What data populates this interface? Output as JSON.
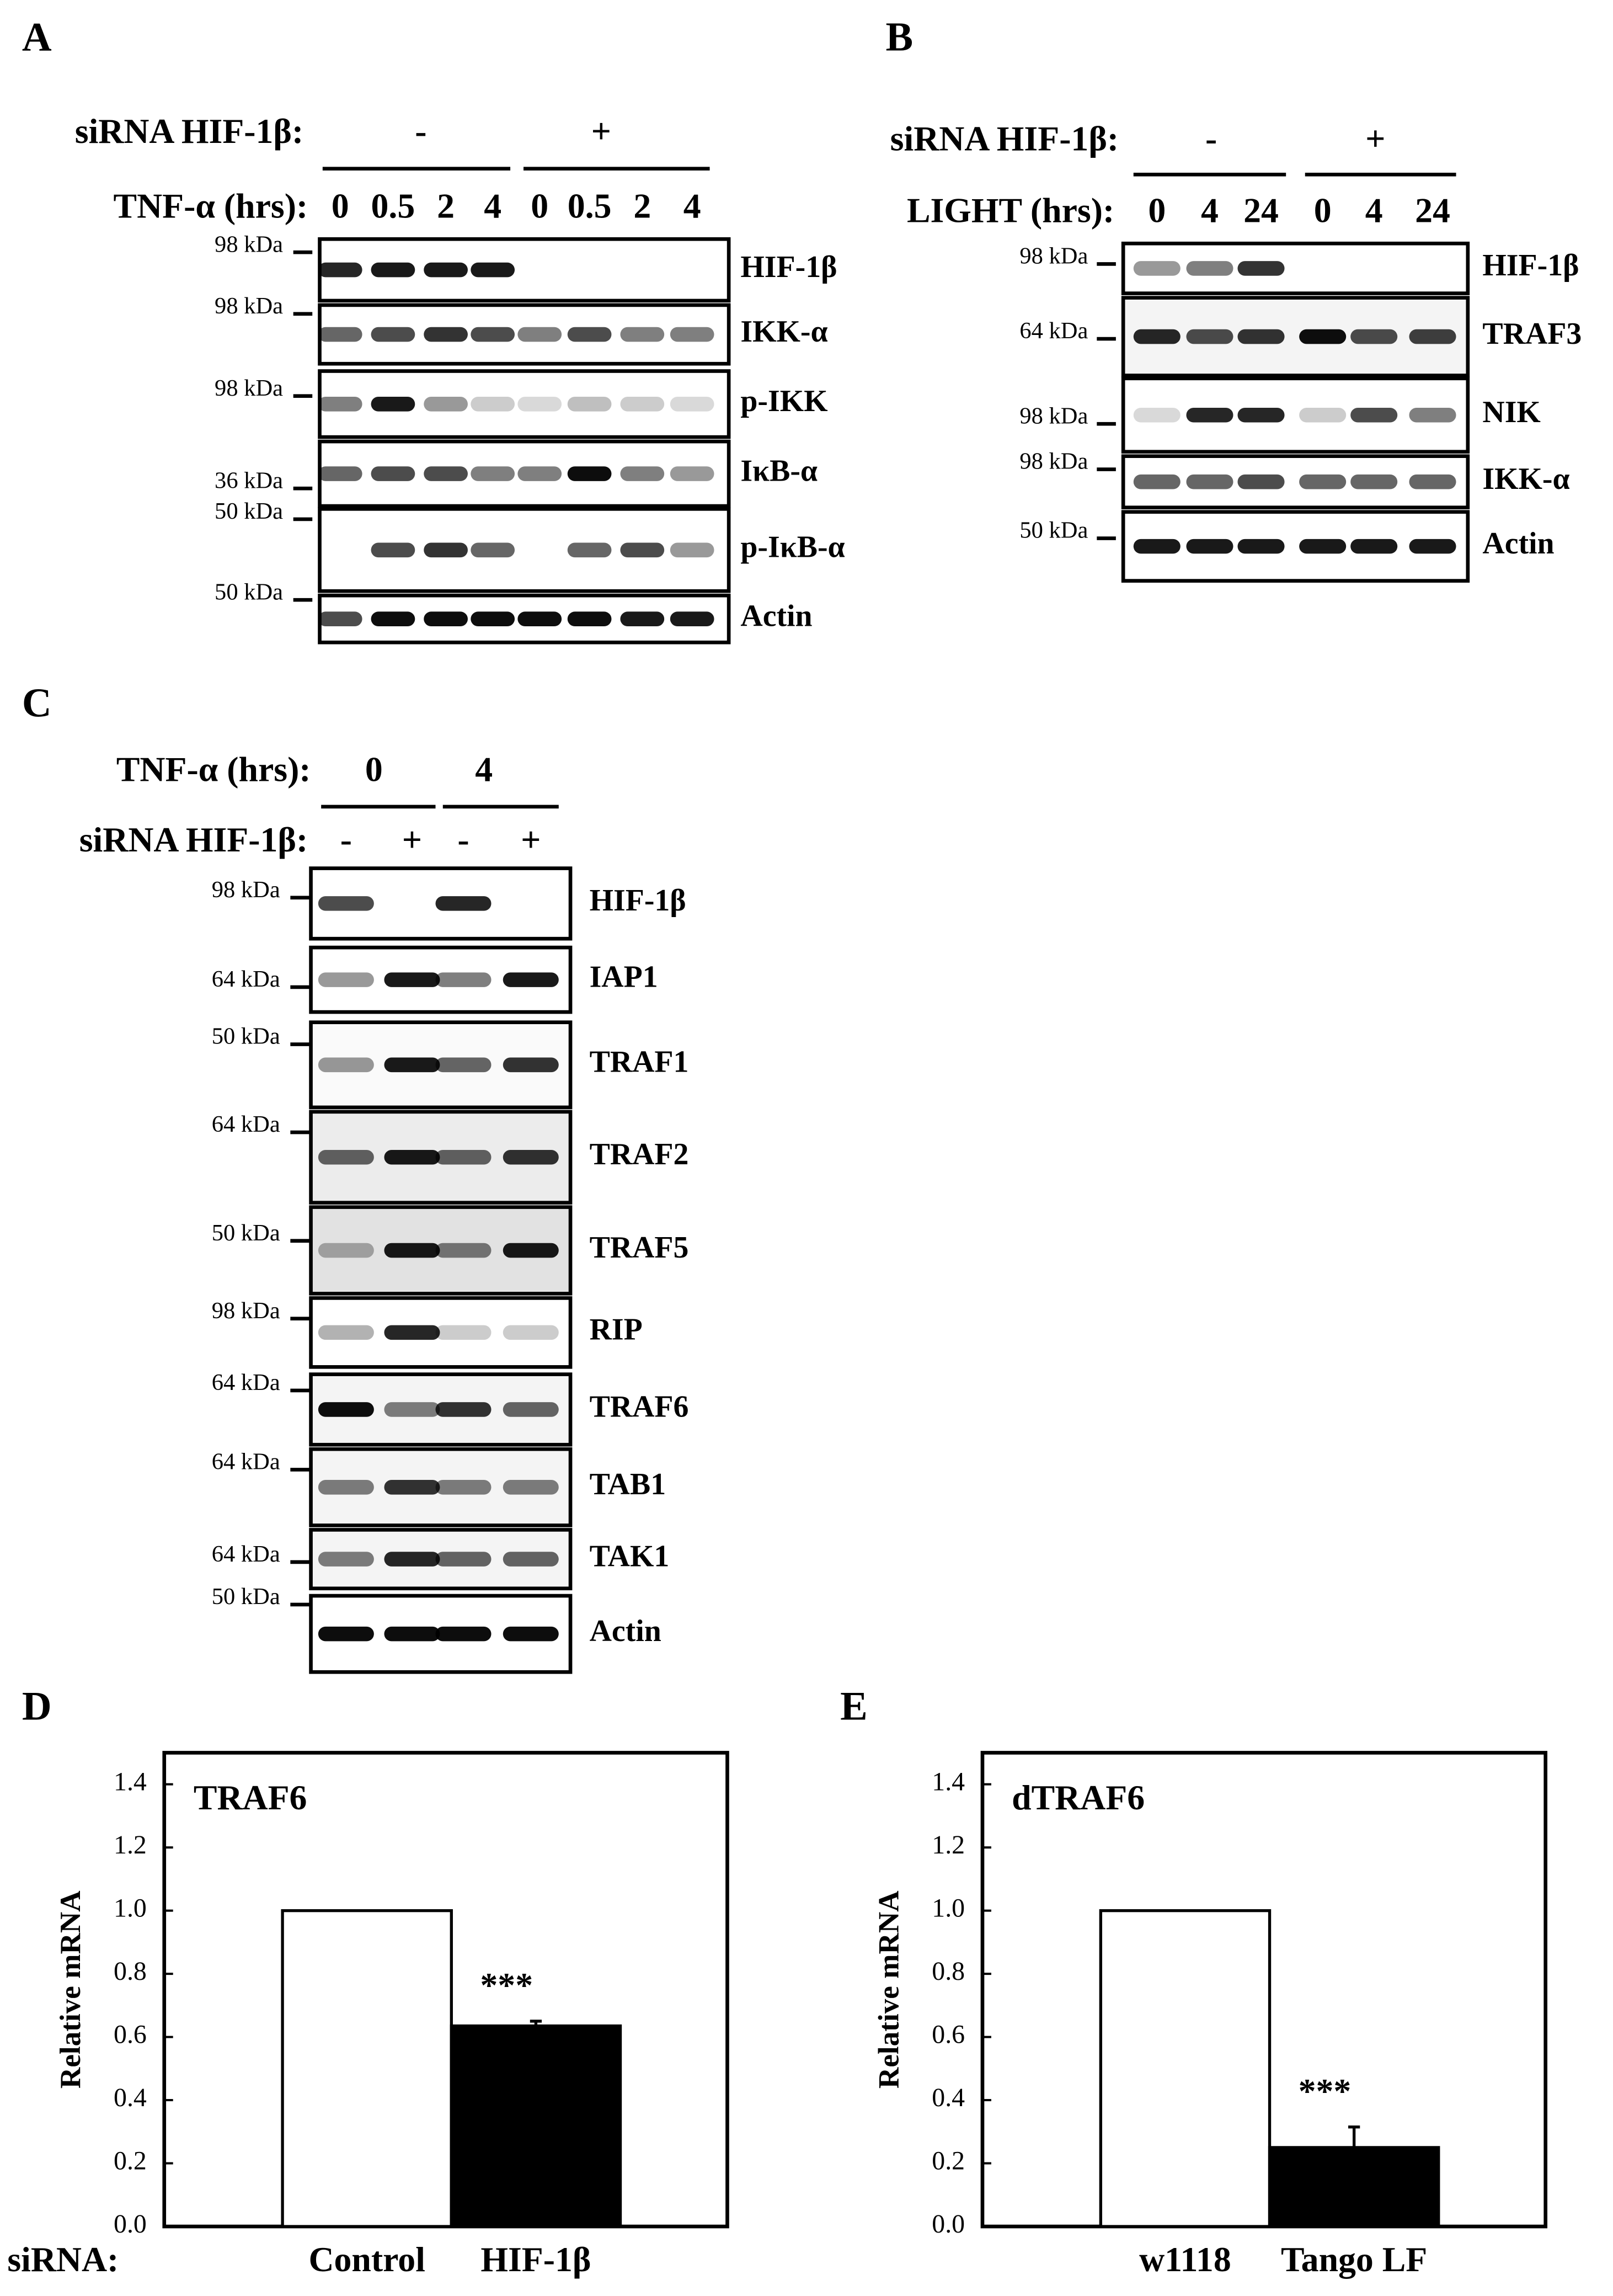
{
  "panels": {
    "A": {
      "label": "A",
      "rows": [
        {
          "label": "siRNA HIF-1β:",
          "values": [
            "-",
            "+"
          ]
        },
        {
          "label": "TNF-α (hrs):",
          "values": [
            "0",
            "0.5",
            "2",
            "4",
            "0",
            "0.5",
            "2",
            "4"
          ]
        }
      ],
      "blots": [
        {
          "protein": "HIF-1β",
          "marker": "98 kDa"
        },
        {
          "protein": "IKK-α",
          "marker": "98 kDa"
        },
        {
          "protein": "p-IKK",
          "marker": "98 kDa"
        },
        {
          "protein": "IκB-α",
          "marker": "36 kDa"
        },
        {
          "protein": "p-IκB-α",
          "marker": "50 kDa"
        },
        {
          "protein": "Actin",
          "marker": "50 kDa"
        }
      ]
    },
    "B": {
      "label": "B",
      "rows": [
        {
          "label": "siRNA HIF-1β:",
          "values": [
            "-",
            "+"
          ]
        },
        {
          "label": "LIGHT (hrs):",
          "values": [
            "0",
            "4",
            "24",
            "0",
            "4",
            "24"
          ]
        }
      ],
      "blots": [
        {
          "protein": "HIF-1β",
          "marker": "98 kDa"
        },
        {
          "protein": "TRAF3",
          "marker": "64 kDa"
        },
        {
          "protein": "NIK",
          "marker": "98 kDa"
        },
        {
          "protein": "IKK-α",
          "marker": "98 kDa"
        },
        {
          "protein": "Actin",
          "marker": "50 kDa"
        }
      ]
    },
    "C": {
      "label": "C",
      "rows": [
        {
          "label": "TNF-α (hrs):",
          "values": [
            "0",
            "4"
          ]
        },
        {
          "label": "siRNA HIF-1β:",
          "values": [
            "-",
            "+",
            "-",
            "+"
          ]
        }
      ],
      "blots": [
        {
          "protein": "HIF-1β",
          "marker": "98 kDa"
        },
        {
          "protein": "IAP1",
          "marker": "64 kDa"
        },
        {
          "protein": "TRAF1",
          "marker": "50 kDa"
        },
        {
          "protein": "TRAF2",
          "marker": "64 kDa"
        },
        {
          "protein": "TRAF5",
          "marker": "50 kDa"
        },
        {
          "protein": "RIP",
          "marker": "98 kDa"
        },
        {
          "protein": "TRAF6",
          "marker": "64 kDa"
        },
        {
          "protein": "TAB1",
          "marker": "64 kDa"
        },
        {
          "protein": "TAK1",
          "marker": "64 kDa"
        },
        {
          "protein": "Actin",
          "marker": "50 kDa"
        }
      ]
    }
  },
  "chart_data": [
    {
      "type": "bar",
      "panel": "D",
      "title": "TRAF6",
      "y_label": "Relative mRNA",
      "x_label": "siRNA:",
      "categories": [
        "Control",
        "HIF-1β"
      ],
      "values": [
        1.0,
        0.635
      ],
      "errors": [
        0,
        0.015
      ],
      "colors": [
        "#ffffff",
        "#000000"
      ],
      "annotation": "***",
      "ylim": [
        0,
        1.5
      ],
      "yticks": [
        {
          "value": 0,
          "label": "0.0"
        },
        {
          "value": 0.2,
          "label": "0.2"
        },
        {
          "value": 0.4,
          "label": "0.4"
        },
        {
          "value": 0.6,
          "label": "0.6"
        },
        {
          "value": 0.8,
          "label": "0.8"
        },
        {
          "value": 1.0,
          "label": "1.0"
        },
        {
          "value": 1.2,
          "label": "1.2"
        },
        {
          "value": 1.4,
          "label": "1.4"
        }
      ]
    },
    {
      "type": "bar",
      "panel": "E",
      "title": "dTRAF6",
      "y_label": "Relative mRNA",
      "categories": [
        "w1118",
        "Tango LF"
      ],
      "values": [
        1.0,
        0.25
      ],
      "errors": [
        0,
        0.065
      ],
      "colors": [
        "#ffffff",
        "#000000"
      ],
      "annotation": "***",
      "ylim": [
        0,
        1.5
      ],
      "yticks": [
        {
          "value": 0,
          "label": "0.0"
        },
        {
          "value": 0.2,
          "label": "0.2"
        },
        {
          "value": 0.4,
          "label": "0.4"
        },
        {
          "value": 0.6,
          "label": "0.6"
        },
        {
          "value": 0.8,
          "label": "0.8"
        },
        {
          "value": 1.0,
          "label": "1.0"
        },
        {
          "value": 1.2,
          "label": "1.2"
        },
        {
          "value": 1.4,
          "label": "1.4"
        }
      ]
    }
  ]
}
